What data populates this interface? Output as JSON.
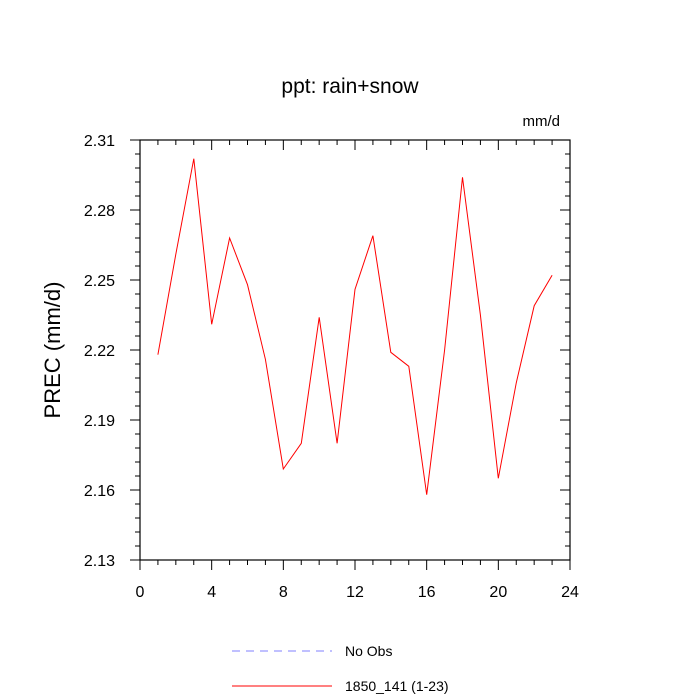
{
  "chart_data": {
    "type": "line",
    "title": "ppt: rain+snow",
    "units_label": "mm/d",
    "ylabel": "PREC  (mm/d)",
    "xlabel": "",
    "xlim": [
      0,
      24
    ],
    "ylim": [
      2.13,
      2.31
    ],
    "x_ticks": [
      0,
      4,
      8,
      12,
      16,
      20,
      24
    ],
    "y_ticks": [
      2.13,
      2.16,
      2.19,
      2.22,
      2.25,
      2.28,
      2.31
    ],
    "x_tick_labels": [
      "0",
      "4",
      "8",
      "12",
      "16",
      "20",
      "24"
    ],
    "y_tick_labels": [
      "2.13",
      "2.16",
      "2.19",
      "2.22",
      "2.25",
      "2.28",
      "2.31"
    ],
    "grid": false,
    "legend_position": "bottom",
    "series": [
      {
        "name": "1850_141 (1-23)",
        "color": "#ff0000",
        "style": "solid",
        "x": [
          1,
          2,
          3,
          4,
          5,
          6,
          7,
          8,
          9,
          10,
          11,
          12,
          13,
          14,
          15,
          16,
          17,
          18,
          19,
          20,
          21,
          22,
          23
        ],
        "values": [
          2.218,
          2.261,
          2.302,
          2.231,
          2.268,
          2.248,
          2.216,
          2.169,
          2.18,
          2.234,
          2.18,
          2.246,
          2.269,
          2.219,
          2.213,
          2.158,
          2.22,
          2.294,
          2.235,
          2.165,
          2.206,
          2.239,
          2.252
        ]
      }
    ],
    "legend": [
      {
        "label": "No Obs",
        "color": "#8080ff",
        "style": "dashed"
      },
      {
        "label": "1850_141 (1-23)",
        "color": "#ff0000",
        "style": "solid"
      }
    ]
  }
}
